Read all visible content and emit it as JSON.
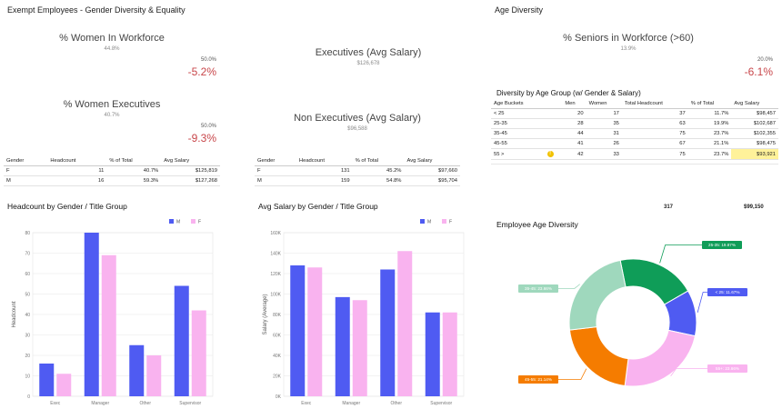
{
  "page": {
    "title": "Exempt Employees - Gender Diversity & Equality",
    "age_title": "Age Diversity"
  },
  "kpis": {
    "women_workforce": {
      "title": "% Women In Workforce",
      "value": "44.8%",
      "target": "50.0%",
      "variance": "-5.2%"
    },
    "women_execs": {
      "title": "% Women Executives",
      "value": "40.7%",
      "target": "50.0%",
      "variance": "-9.3%"
    },
    "execs_salary": {
      "title": "Executives (Avg Salary)",
      "value": "$126,678"
    },
    "non_execs_salary": {
      "title": "Non Executives (Avg Salary)",
      "value": "$96,588"
    },
    "seniors": {
      "title": "% Seniors in Workforce (>60)",
      "value": "13.9%",
      "target": "20.0%",
      "variance": "-6.1%"
    }
  },
  "exec_table": {
    "headers": [
      "Gender",
      "Headcount",
      "% of Total",
      "Avg Salary"
    ],
    "rows": [
      [
        "F",
        "11",
        "40.7%",
        "$125,819"
      ],
      [
        "M",
        "16",
        "59.3%",
        "$127,268"
      ]
    ]
  },
  "nonexec_table": {
    "headers": [
      "Gender",
      "Headcount",
      "% of Total",
      "Avg Salary"
    ],
    "rows": [
      [
        "F",
        "131",
        "45.2%",
        "$97,660"
      ],
      [
        "M",
        "159",
        "54.8%",
        "$95,704"
      ]
    ]
  },
  "age_table": {
    "title": "Diversity by Age Group (w/ Gender & Salary)",
    "headers": [
      "Age Buckets",
      "Men",
      "Women",
      "Total Headcount",
      "% of Total",
      "Avg Salary"
    ],
    "rows": [
      [
        "< 25",
        "20",
        "17",
        "37",
        "11.7%",
        "$98,457"
      ],
      [
        "25-35",
        "28",
        "35",
        "63",
        "19.9%",
        "$102,687"
      ],
      [
        "35-45",
        "44",
        "31",
        "75",
        "23.7%",
        "$102,355"
      ],
      [
        "45-55",
        "41",
        "26",
        "67",
        "21.1%",
        "$98,475"
      ],
      [
        "55 >",
        "42",
        "33",
        "75",
        "23.7%",
        "$93,921"
      ]
    ],
    "total_headcount": "317",
    "total_salary": "$99,150",
    "warning_icon": "warning-icon",
    "highlight_color": "#fff29a"
  },
  "colors": {
    "male": "#4f5bf2",
    "female": "#f9b3ef",
    "negative": "#c8464a"
  },
  "chart_data": [
    {
      "type": "bar",
      "title": "Headcount by Gender / Title Group",
      "categories": [
        "Exec",
        "Manager",
        "Other",
        "Supervisor"
      ],
      "series": [
        {
          "name": "M",
          "values": [
            16,
            80,
            25,
            54
          ]
        },
        {
          "name": "F",
          "values": [
            11,
            69,
            20,
            42
          ]
        }
      ],
      "xlabel": "",
      "ylabel": "Headcount",
      "ylim": [
        0,
        80
      ],
      "yticks": [
        "0",
        "10",
        "20",
        "30",
        "40",
        "50",
        "60",
        "70",
        "80"
      ],
      "legend": "top-right"
    },
    {
      "type": "bar",
      "title": "Avg Salary by Gender / Title Group",
      "categories": [
        "Exec",
        "Manager",
        "Other",
        "Supervisor"
      ],
      "series": [
        {
          "name": "M",
          "values": [
            128000,
            97000,
            124000,
            82000
          ]
        },
        {
          "name": "F",
          "values": [
            126000,
            94000,
            142000,
            82000
          ]
        }
      ],
      "xlabel": "",
      "ylabel": "Salary (Average)",
      "ylim": [
        0,
        160000
      ],
      "yticks": [
        "0K",
        "20K",
        "40K",
        "60K",
        "80K",
        "100K",
        "120K",
        "140K",
        "160K"
      ],
      "legend": "top-right"
    },
    {
      "type": "pie",
      "title": "Employee Age Diversity",
      "slices": [
        {
          "label": "25-35: 19.87%",
          "value": 19.87,
          "color": "#0f9d58"
        },
        {
          "label": "< 25: 11.67%",
          "value": 11.67,
          "color": "#4f5bf2"
        },
        {
          "label": "55+: 23.66%",
          "value": 23.66,
          "color": "#f9b3ef"
        },
        {
          "label": "45-55: 21.14%",
          "value": 21.14,
          "color": "#f57c00"
        },
        {
          "label": "35-45: 23.66%",
          "value": 23.66,
          "color": "#9fd8bd"
        }
      ]
    }
  ]
}
